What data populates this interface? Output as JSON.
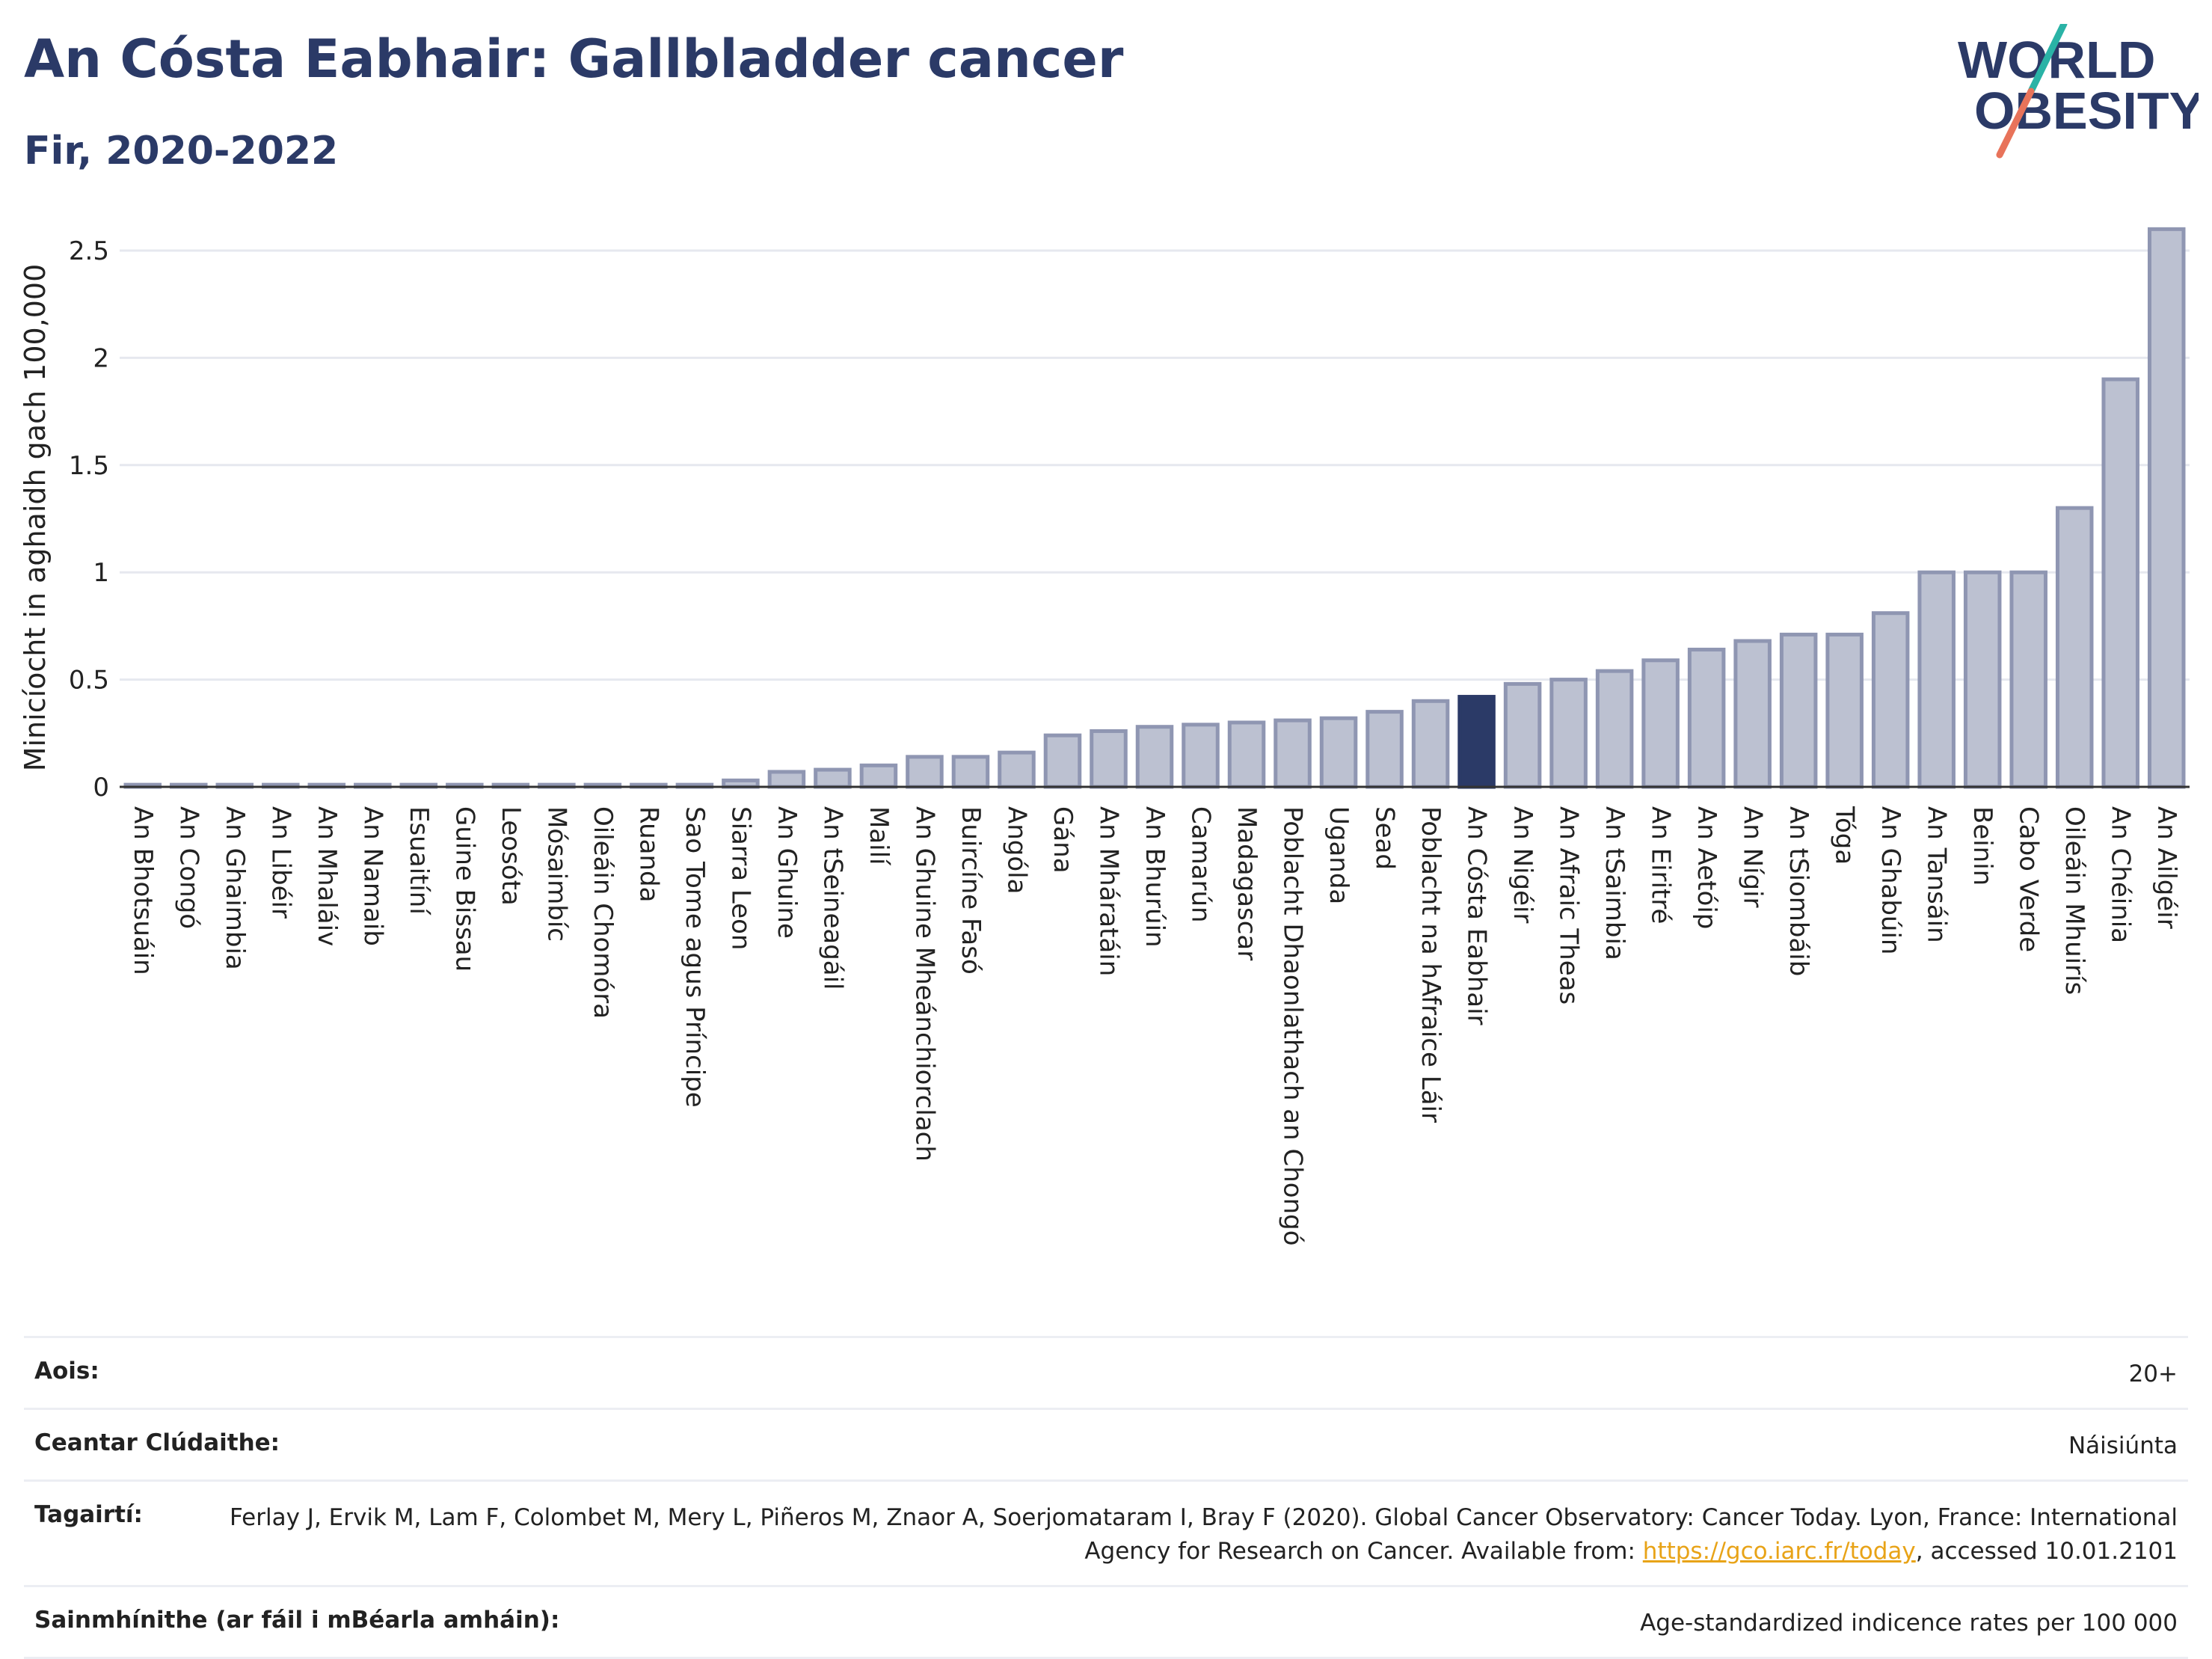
{
  "header": {
    "title": "An Cósta Eabhair: Gallbladder cancer",
    "subtitle": "Fir, 2020-2022"
  },
  "logo": {
    "line1": "WORLD",
    "line2": "OBESITY",
    "colors": {
      "text": "#2b3a67",
      "stroke_top": "#2ab3a6",
      "stroke_bottom": "#e8735a"
    }
  },
  "chart_data": {
    "type": "bar",
    "title": "An Cósta Eabhair: Gallbladder cancer",
    "subtitle": "Fir, 2020-2022",
    "ylabel": "Minicíocht in aghaidh gach 100,000",
    "ylim": [
      0,
      2.65
    ],
    "yticks": [
      0,
      0.5,
      1,
      1.5,
      2,
      2.5
    ],
    "ytick_labels": [
      "0",
      "0.5",
      "1",
      "1.5",
      "2",
      "2.5"
    ],
    "grid": true,
    "highlight": "An Cósta Eabhair",
    "colors": {
      "bar": "#bcc1d1",
      "bar_edge": "#8f96b2",
      "highlight": "#2b3a67",
      "grid": "#e6e8ef",
      "axis": "#333333"
    },
    "categories": [
      "An Bhotsuáin",
      "An Congó",
      "An Ghaimbia",
      "An Libéir",
      "An Mhaláiv",
      "An Namaib",
      "Esuaitíní",
      "Guine Bissau",
      "Leosóta",
      "Mósaimbíc",
      "Oileáin Chomóra",
      "Ruanda",
      "Sao Tome agus Príncipe",
      "Siarra Leon",
      "An Ghuine",
      "An tSeineagáil",
      "Mailí",
      "An Ghuine Mheánchiorclach",
      "Buircíne Fasó",
      "Angóla",
      "Gána",
      "An Mháratáin",
      "An Bhurúin",
      "Camarún",
      "Madagascar",
      "Poblacht Dhaonlathach an Chongó",
      "Uganda",
      "Sead",
      "Poblacht na hAfraice Láir",
      "An Cósta Eabhair",
      "An Nigéir",
      "An Afraic Theas",
      "An tSaimbia",
      "An Eiritré",
      "An Aetóip",
      "An Nígir",
      "An tSiombáib",
      "Tóga",
      "An Ghabúin",
      "An Tansáin",
      "Beinin",
      "Cabo Verde",
      "Oileáin Mhuirís",
      "An Chéinia",
      "An Ailgéir"
    ],
    "values": [
      0.01,
      0.01,
      0.01,
      0.01,
      0.01,
      0.01,
      0.01,
      0.01,
      0.01,
      0.01,
      0.01,
      0.01,
      0.01,
      0.03,
      0.07,
      0.08,
      0.1,
      0.14,
      0.14,
      0.16,
      0.24,
      0.26,
      0.28,
      0.29,
      0.3,
      0.31,
      0.32,
      0.35,
      0.4,
      0.42,
      0.48,
      0.5,
      0.54,
      0.59,
      0.64,
      0.68,
      0.71,
      0.71,
      0.81,
      1.0,
      1.0,
      1.0,
      1.3,
      1.9,
      2.6
    ]
  },
  "footer": {
    "age_label": "Aois:",
    "age_value": "20+",
    "area_label": "Ceantar Clúdaithe:",
    "area_value": "Náisiúnta",
    "ref_label": "Tagairtí:",
    "ref_text_1": "Ferlay J, Ervik M, Lam F, Colombet M, Mery L, Piñeros M, Znaor A, Soerjomataram I, Bray F (2020). Global Cancer Observatory: Cancer Today. Lyon, France: International Agency for Research on Cancer. Available from: ",
    "ref_link": "https://gco.iarc.fr/today",
    "ref_text_2": ", accessed 10.01.2101",
    "def_label": "Sainmhínithe (ar fáil i mBéarla amháin):",
    "def_value": "Age-standardized indicence rates per 100 000"
  }
}
